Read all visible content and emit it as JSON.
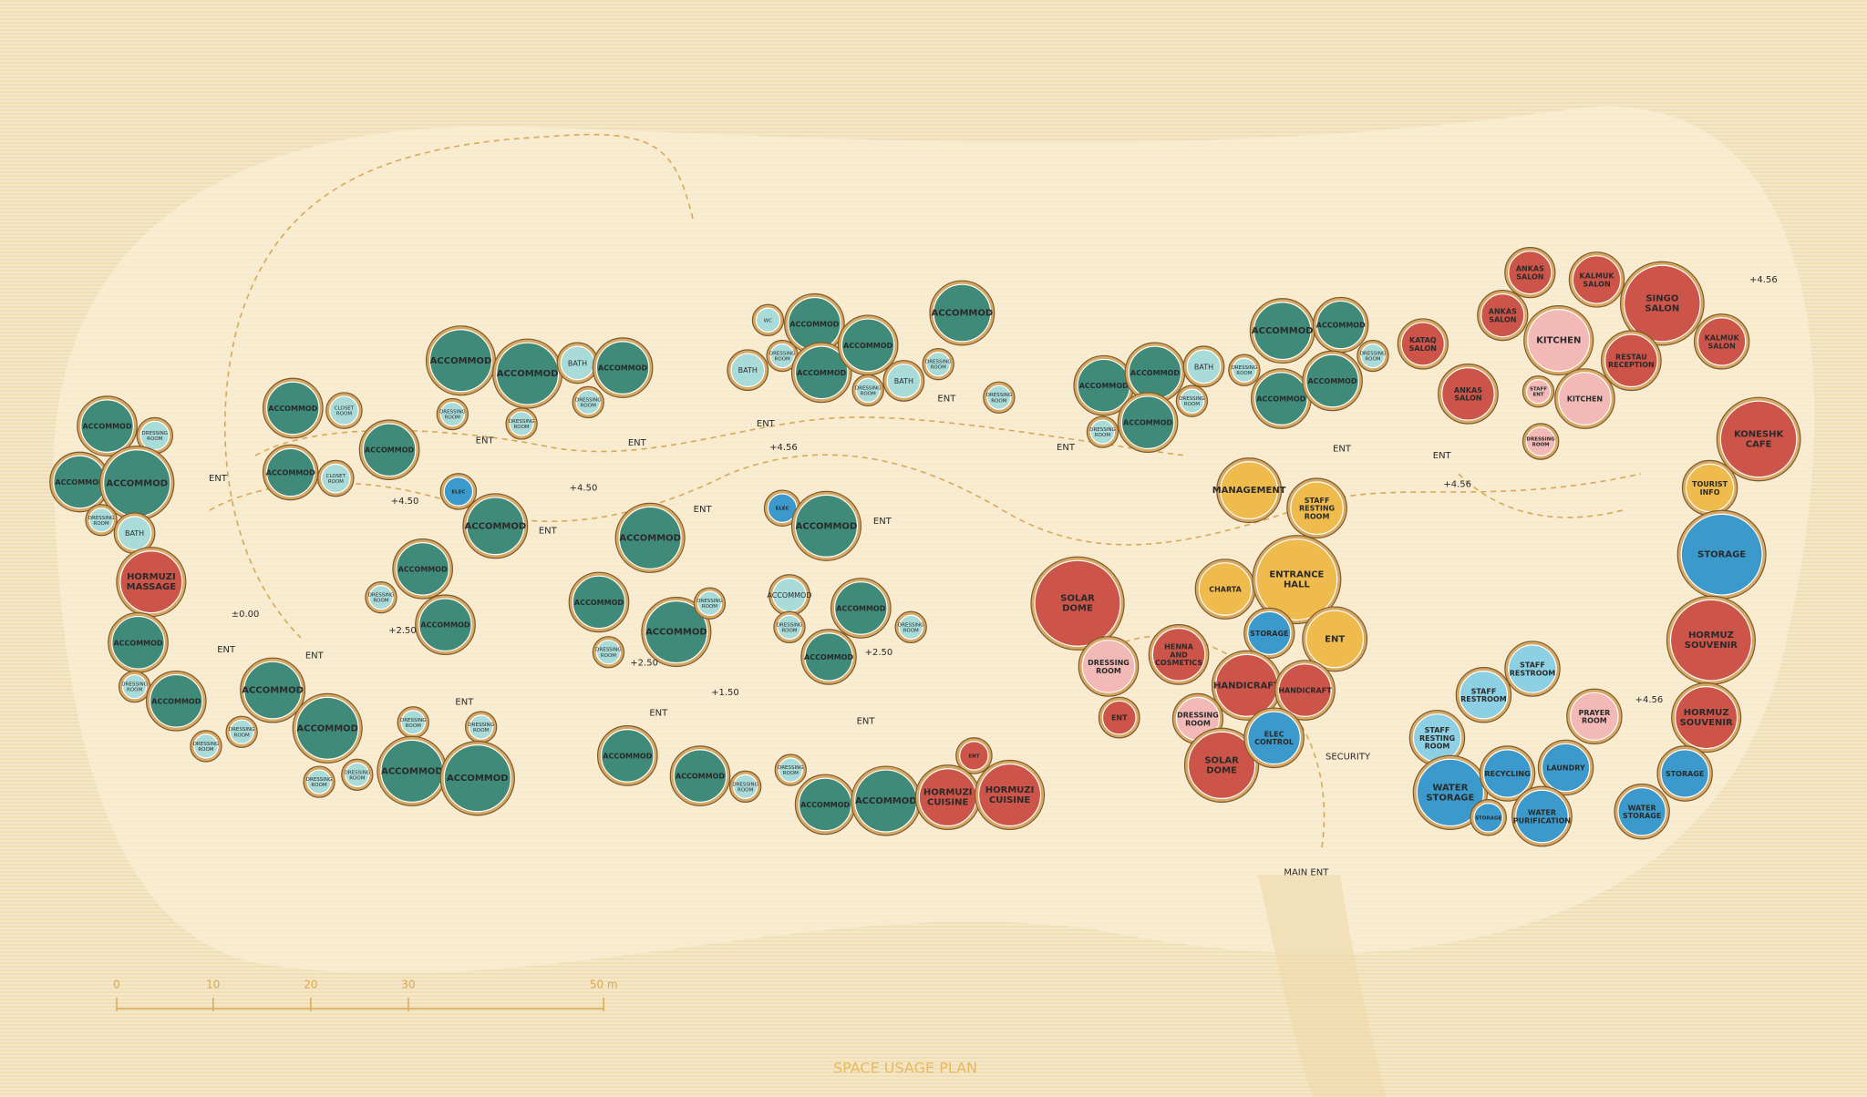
{
  "title": "SPACE USAGE PLAN",
  "nodes": [
    {
      "label": "ACCOMMOD"
    },
    {
      "label": "DRESSING ROOM"
    },
    {
      "label": "ACCOMMOD"
    },
    {
      "label": "ACCOMMOD"
    },
    {
      "label": "DRESSING ROOM"
    },
    {
      "label": "BATH"
    },
    {
      "label": "HORMUZI MASSAGE"
    },
    {
      "label": "ACCOMMOD"
    },
    {
      "label": "DRESSING ROOM"
    },
    {
      "label": "ACCOMMOD"
    },
    {
      "label": "DRESSING ROOM"
    },
    {
      "label": "DRESSING ROOM"
    },
    {
      "label": "ACCOMMOD"
    },
    {
      "label": "ACCOMMOD"
    },
    {
      "label": "DRESSING ROOM"
    },
    {
      "label": "DRESSING ROOM"
    },
    {
      "label": "DRESSING ROOM"
    },
    {
      "label": "DRESSING ROOM"
    },
    {
      "label": "ACCOMMOD"
    },
    {
      "label": "ACCOMMOD"
    },
    {
      "label": "ACCOMMOD"
    },
    {
      "label": "CLOSET ROOM"
    },
    {
      "label": "ACCOMMOD"
    },
    {
      "label": "CLOSET ROOM"
    },
    {
      "label": "ACCOMMOD"
    },
    {
      "label": "ACCOMMOD"
    },
    {
      "label": "ACCOMMOD"
    },
    {
      "label": "DRESSING ROOM"
    },
    {
      "label": "DRESSING ROOM"
    },
    {
      "label": "BATH"
    },
    {
      "label": "DRESSING ROOM"
    },
    {
      "label": "ACCOMMOD"
    },
    {
      "label": "ELEC"
    },
    {
      "label": "ACCOMMOD"
    },
    {
      "label": "ACCOMMOD"
    },
    {
      "label": "DRESSING ROOM"
    },
    {
      "label": "ACCOMMOD"
    },
    {
      "label": "ACCOMMOD"
    },
    {
      "label": "ACCOMMOD"
    },
    {
      "label": "ACCOMMOD"
    },
    {
      "label": "DRESSING ROOM"
    },
    {
      "label": "DRESSING ROOM"
    },
    {
      "label": "WC"
    },
    {
      "label": "ACCOMMOD"
    },
    {
      "label": "DRESSING ROOM"
    },
    {
      "label": "BATH"
    },
    {
      "label": "ACCOMMOD"
    },
    {
      "label": "ACCOMMOD"
    },
    {
      "label": "DRESSING ROOM"
    },
    {
      "label": "BATH"
    },
    {
      "label": "ACCOMMOD"
    },
    {
      "label": "DRESSING ROOM"
    },
    {
      "label": "DRESSING ROOM"
    },
    {
      "label": "ELEC"
    },
    {
      "label": "ACCOMMOD"
    },
    {
      "label": "ACCOMMOD"
    },
    {
      "label": "ACCOMMOD"
    },
    {
      "label": "DRESSING ROOM"
    },
    {
      "label": "DRESSING ROOM"
    },
    {
      "label": "ACCOMMOD"
    },
    {
      "label": "ACCOMMOD"
    },
    {
      "label": "ACCOMMOD"
    },
    {
      "label": "DRESSING ROOM"
    },
    {
      "label": "DRESSING ROOM"
    },
    {
      "label": "ACCOMMOD"
    },
    {
      "label": "ACCOMMOD"
    },
    {
      "label": "ENT"
    },
    {
      "label": "HORMUZI CUISINE"
    },
    {
      "label": "HORMUZI CUISINE"
    },
    {
      "label": "ACCOMMOD"
    },
    {
      "label": "DRESSING ROOM"
    },
    {
      "label": "ACCOMMOD"
    },
    {
      "label": "ACCOMMOD"
    },
    {
      "label": "BATH"
    },
    {
      "label": "DRESSING ROOM"
    },
    {
      "label": "ACCOMMOD"
    },
    {
      "label": "ACCOMMOD"
    },
    {
      "label": "DRESSING ROOM"
    },
    {
      "label": "ACCOMMOD"
    },
    {
      "label": "ACCOMMOD"
    },
    {
      "label": "DRESSING ROOM"
    },
    {
      "label": "ANKAS SALON"
    },
    {
      "label": "ANKAS SALON"
    },
    {
      "label": "KALMUK SALON"
    },
    {
      "label": "SINGO SALON"
    },
    {
      "label": "KALMUK SALON"
    },
    {
      "label": "KATAQ SALON"
    },
    {
      "label": "ANKAS SALON"
    },
    {
      "label": "KITCHEN"
    },
    {
      "label": "RESTAU RECEPTION"
    },
    {
      "label": "STAFF ENT"
    },
    {
      "label": "KITCHEN"
    },
    {
      "label": "DRESSING ROOM"
    },
    {
      "label": "KONESHK CAFE"
    },
    {
      "label": "TOURIST INFO"
    },
    {
      "label": "STORAGE"
    },
    {
      "label": "HORMUZ SOUVENIR"
    },
    {
      "label": "HORMUZ SOUVENIR"
    },
    {
      "label": "STORAGE"
    },
    {
      "label": "MANAGEMENT"
    },
    {
      "label": "STAFF RESTING ROOM"
    },
    {
      "label": "CHARTA"
    },
    {
      "label": "ENTRANCE HALL"
    },
    {
      "label": "STORAGE"
    },
    {
      "label": "ENT"
    },
    {
      "label": "SOLAR DOME"
    },
    {
      "label": "DRESSING ROOM"
    },
    {
      "label": "HENNA AND COSMETICS"
    },
    {
      "label": "HANDICRAFT"
    },
    {
      "label": "HANDICRAFT"
    },
    {
      "label": "ENT"
    },
    {
      "label": "DRESSING ROOM"
    },
    {
      "label": "SOLAR DOME"
    },
    {
      "label": "ELEC CONTROL"
    },
    {
      "label": "STAFF RESTROOM"
    },
    {
      "label": "STAFF RESTROOM"
    },
    {
      "label": "STAFF RESTING ROOM"
    },
    {
      "label": "PRAYER ROOM"
    },
    {
      "label": "WATER STORAGE"
    },
    {
      "label": "RECYCLING"
    },
    {
      "label": "LAUNDRY"
    },
    {
      "label": "STORAGE"
    },
    {
      "label": "WATER PURIFICATION"
    },
    {
      "label": "WATER STORAGE"
    }
  ],
  "annotations": [
    "ENT",
    "ENT",
    "ENT",
    "+4.50",
    "+4.50",
    "ENT",
    "ENT",
    "ENT",
    "+4.56",
    "ENT",
    "ENT",
    "ENT",
    "ENT",
    "ENT",
    "+4.56",
    "+4.56",
    "±0.00",
    "ENT",
    "ENT",
    "+2.50",
    "+2.50",
    "+2.50",
    "+1.50",
    "ENT",
    "ENT",
    "ENT",
    "SECURITY",
    "+4.56",
    "MAIN ENT"
  ],
  "scale": {
    "ticks": [
      "0",
      "10",
      "20",
      "30",
      "50 m"
    ]
  }
}
